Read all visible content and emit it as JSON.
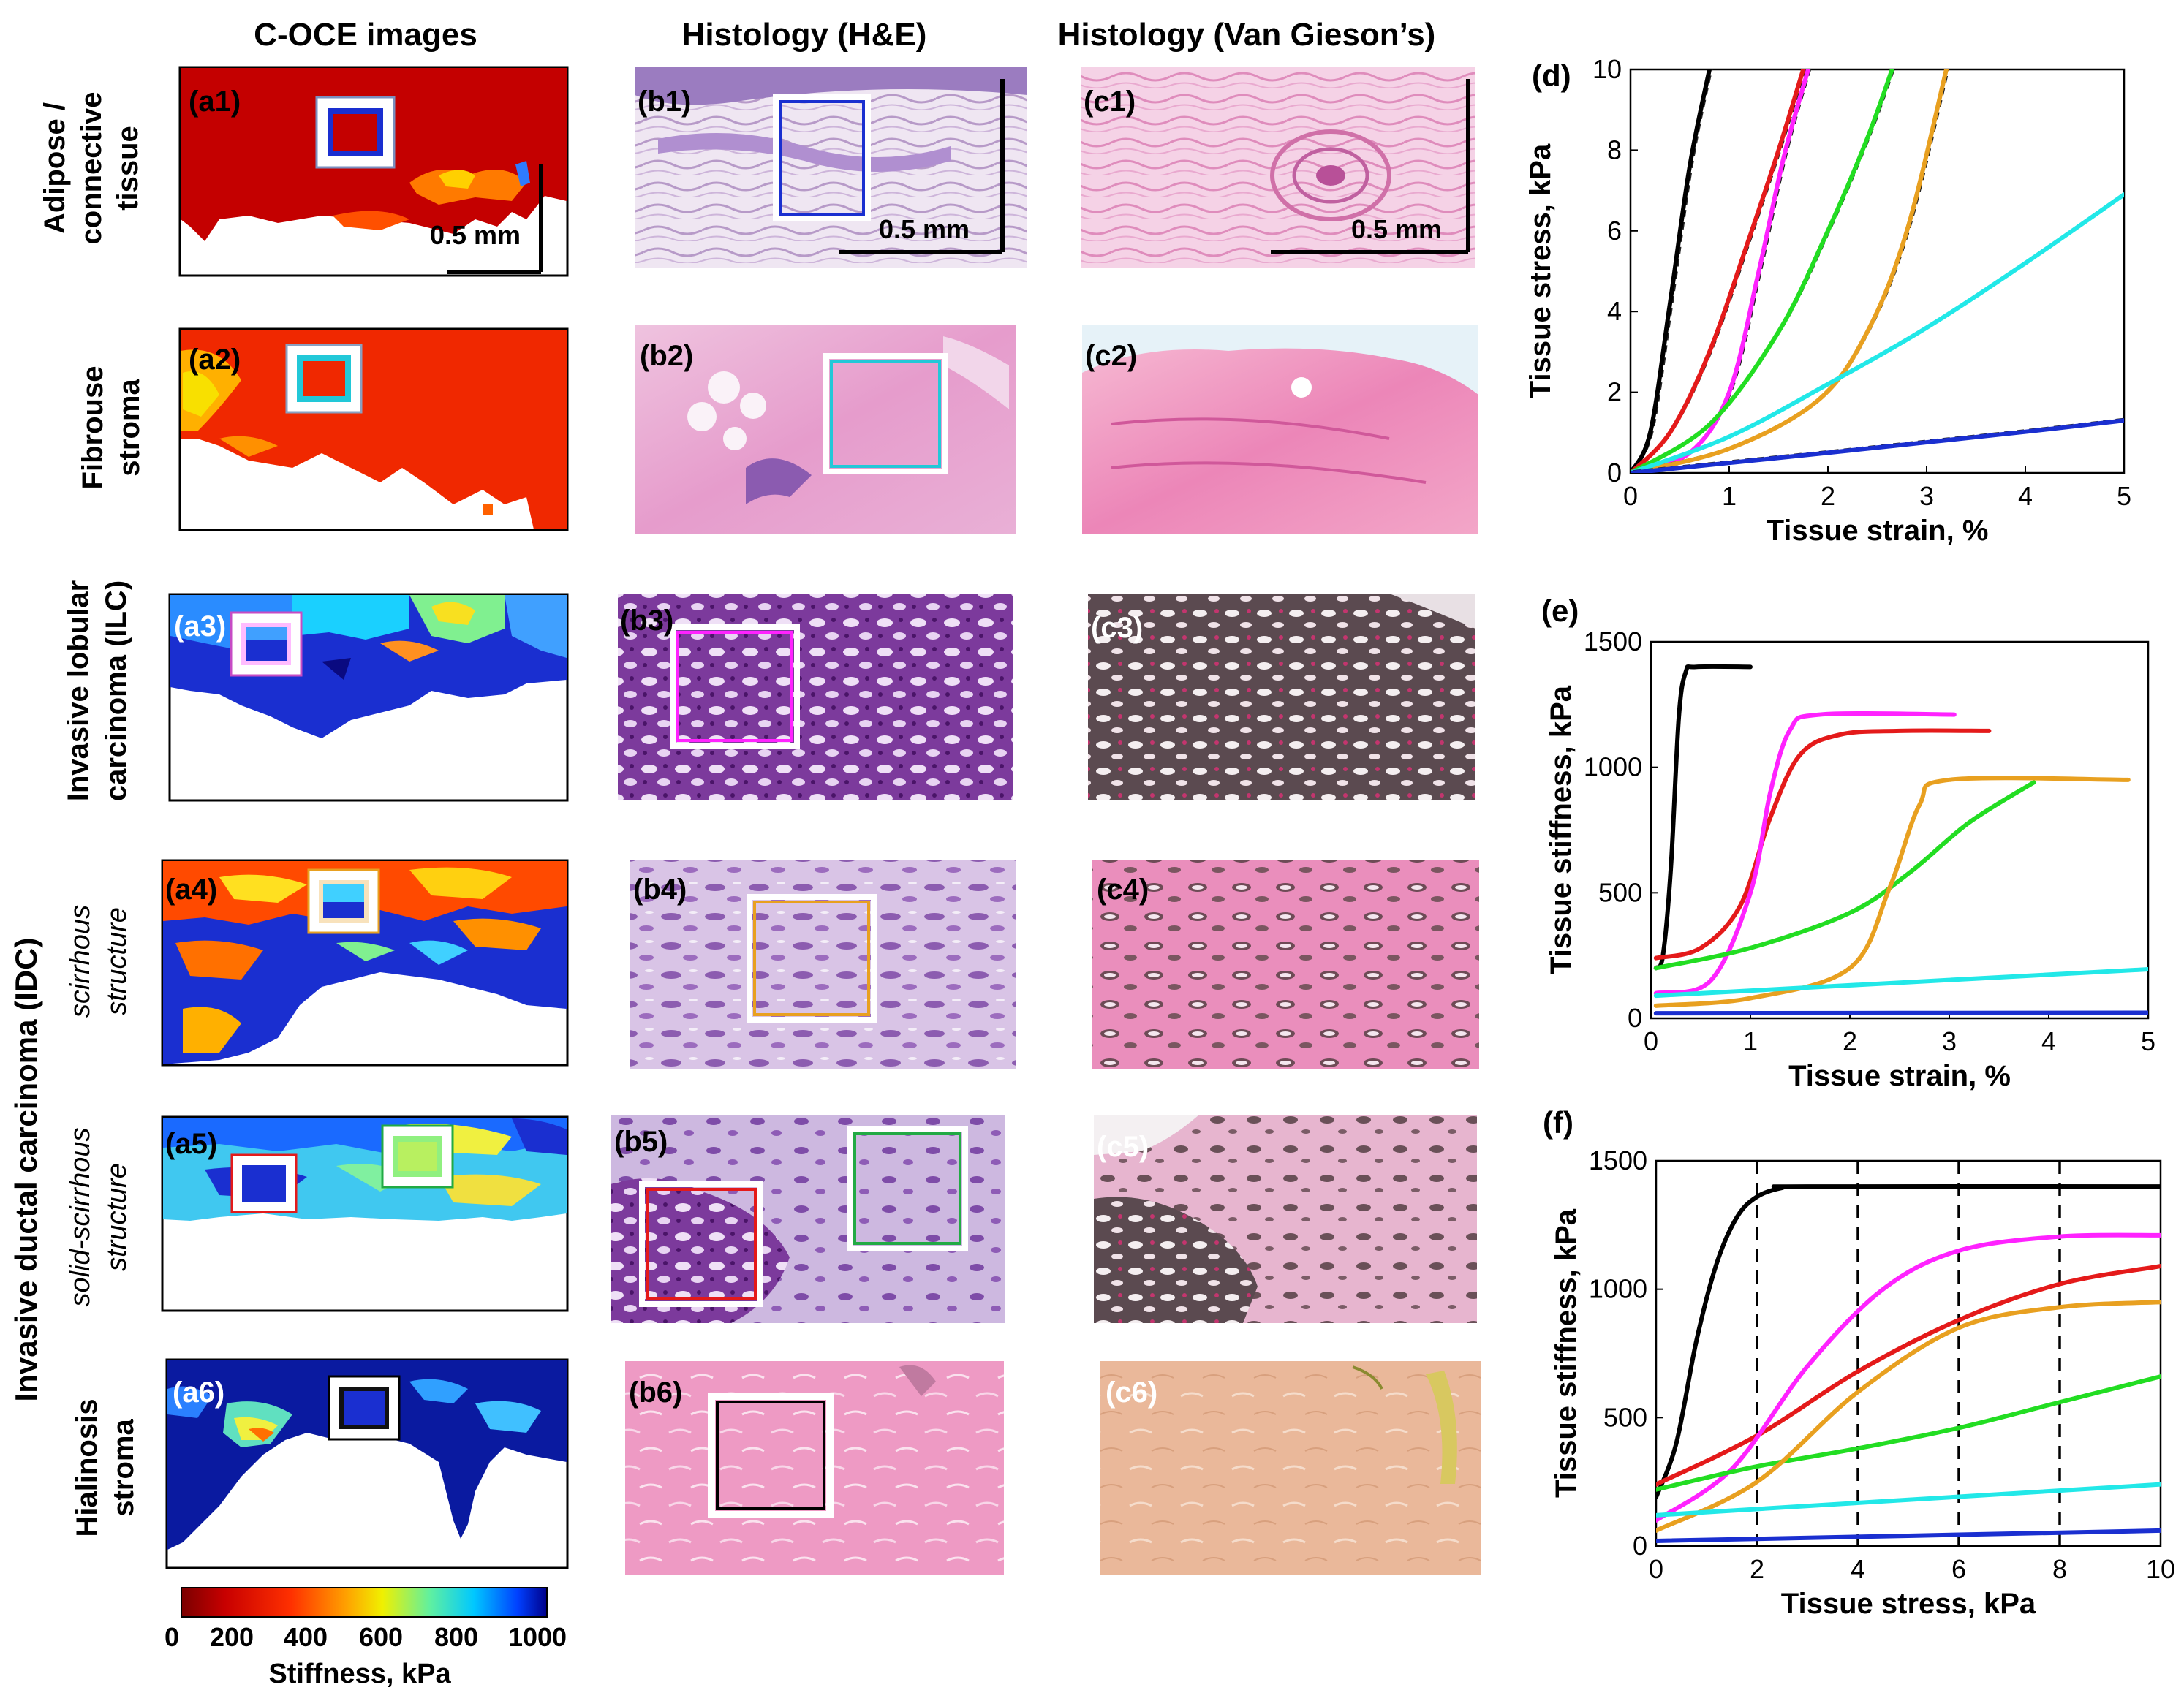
{
  "column_headers": {
    "oce": "C-OCE images",
    "he": "Histology (H&E)",
    "vg": "Histology (Van Gieson’s)"
  },
  "row_labels": {
    "r1": [
      "Adipose /",
      "connective",
      "tissue"
    ],
    "r2": [
      "Fibrouse",
      "stroma"
    ],
    "r3": [
      "Invasive lobular",
      "carcinoma (ILC)"
    ],
    "r4": [
      "scirrhous",
      "structure"
    ],
    "r5": [
      "solid-scirrhous",
      "structure"
    ],
    "r6": [
      "Hialinosis",
      "stroma"
    ],
    "idc": "Invasive ductal carcinoma (IDC)"
  },
  "panel_labels": {
    "a1": "(a1)",
    "a2": "(a2)",
    "a3": "(a3)",
    "a4": "(a4)",
    "a5": "(a5)",
    "a6": "(a6)",
    "b1": "(b1)",
    "b2": "(b2)",
    "b3": "(b3)",
    "b4": "(b4)",
    "b5": "(b5)",
    "b6": "(b6)",
    "c1": "(c1)",
    "c2": "(c2)",
    "c3": "(c3)",
    "c4": "(c4)",
    "c5": "(c5)",
    "c6": "(c6)",
    "d": "(d)",
    "e": "(e)",
    "f": "(f)"
  },
  "scale_bar": "0.5 mm",
  "colorbar": {
    "ticks": [
      "0",
      "200",
      "400",
      "600",
      "800",
      "1000"
    ],
    "label": "Stiffness, kPa"
  },
  "colors": {
    "black": "#000000",
    "red": "#e41a1a",
    "magenta": "#ff22ff",
    "green": "#22dd22",
    "orange": "#e8a020",
    "cyan": "#22e8e8",
    "blue": "#1a2fd0"
  },
  "chart_data": [
    {
      "id": "d",
      "type": "line",
      "xlabel": "Tissue strain, %",
      "ylabel": "Tissue stress, kPa",
      "xlim": [
        0,
        5
      ],
      "ylim": [
        0,
        10
      ],
      "xticks": [
        0,
        1,
        2,
        3,
        4,
        5
      ],
      "yticks": [
        0,
        2,
        4,
        6,
        8,
        10
      ],
      "series": [
        {
          "name": "black",
          "x": [
            0,
            0.2,
            0.4,
            0.6,
            0.8
          ],
          "y": [
            0,
            1.0,
            4.2,
            7.6,
            10
          ]
        },
        {
          "name": "red",
          "x": [
            0,
            0.4,
            0.8,
            1.2,
            1.5,
            1.75
          ],
          "y": [
            0,
            1.0,
            3.0,
            5.8,
            8.0,
            10
          ]
        },
        {
          "name": "magenta",
          "x": [
            0,
            0.6,
            1.0,
            1.3,
            1.55,
            1.8
          ],
          "y": [
            0,
            0.5,
            2.0,
            5.0,
            7.8,
            10
          ]
        },
        {
          "name": "green",
          "x": [
            0,
            0.8,
            1.5,
            2.0,
            2.4,
            2.65
          ],
          "y": [
            0,
            1.2,
            3.5,
            6.0,
            8.3,
            10
          ]
        },
        {
          "name": "orange",
          "x": [
            0,
            1.0,
            1.9,
            2.4,
            2.8,
            3.2
          ],
          "y": [
            0,
            0.6,
            1.8,
            3.5,
            6.0,
            10
          ]
        },
        {
          "name": "cyan",
          "x": [
            0,
            1.0,
            2.0,
            3.0,
            4.0,
            5.0
          ],
          "y": [
            0,
            0.9,
            2.2,
            3.6,
            5.2,
            6.9
          ]
        },
        {
          "name": "blue",
          "x": [
            0,
            1.0,
            2.0,
            3.0,
            4.0,
            5.0
          ],
          "y": [
            0,
            0.25,
            0.5,
            0.76,
            1.02,
            1.3
          ]
        }
      ]
    },
    {
      "id": "e",
      "type": "line",
      "xlabel": "Tissue strain, %",
      "ylabel": "Tissue stiffness, kPa",
      "xlim": [
        0,
        5
      ],
      "ylim": [
        0,
        1500
      ],
      "xticks": [
        0,
        1,
        2,
        3,
        4,
        5
      ],
      "yticks": [
        0,
        500,
        1000,
        1500
      ],
      "series": [
        {
          "name": "black",
          "x": [
            0.05,
            0.12,
            0.2,
            0.28,
            0.35,
            0.45,
            1.0
          ],
          "y": [
            200,
            250,
            600,
            1200,
            1380,
            1400,
            1400
          ]
        },
        {
          "name": "red",
          "x": [
            0.05,
            0.5,
            0.9,
            1.2,
            1.5,
            1.9,
            2.5,
            3.4
          ],
          "y": [
            240,
            280,
            450,
            800,
            1050,
            1130,
            1145,
            1145
          ]
        },
        {
          "name": "magenta",
          "x": [
            0.05,
            0.6,
            1.0,
            1.2,
            1.4,
            1.7,
            3.05
          ],
          "y": [
            100,
            150,
            500,
            900,
            1150,
            1210,
            1210
          ]
        },
        {
          "name": "green",
          "x": [
            0.05,
            1.0,
            2.0,
            2.6,
            3.2,
            3.85
          ],
          "y": [
            200,
            280,
            420,
            580,
            780,
            940
          ]
        },
        {
          "name": "orange",
          "x": [
            0.05,
            1.0,
            2.0,
            2.4,
            2.7,
            3.0,
            4.8
          ],
          "y": [
            50,
            80,
            200,
            520,
            850,
            950,
            950
          ]
        },
        {
          "name": "cyan",
          "x": [
            0.05,
            5.0
          ],
          "y": [
            90,
            195
          ]
        },
        {
          "name": "blue",
          "x": [
            0.05,
            5.0
          ],
          "y": [
            20,
            22
          ]
        }
      ]
    },
    {
      "id": "f",
      "type": "line",
      "xlabel": "Tissue stress, kPa",
      "ylabel": "Tissue stiffness, kPa",
      "xlim": [
        0,
        10
      ],
      "ylim": [
        0,
        1500
      ],
      "xticks": [
        0,
        2,
        4,
        6,
        8,
        10
      ],
      "yticks": [
        0,
        500,
        1000,
        1500
      ],
      "vlines": [
        2,
        4,
        6,
        8
      ],
      "series": [
        {
          "name": "black",
          "x": [
            0,
            0.4,
            0.8,
            1.2,
            1.6,
            2.0,
            2.5,
            3.0,
            10
          ],
          "y": [
            190,
            400,
            800,
            1100,
            1280,
            1360,
            1395,
            1400,
            1400
          ]
        },
        {
          "name": "red",
          "x": [
            0,
            2,
            4,
            6,
            8,
            10
          ],
          "y": [
            240,
            430,
            680,
            880,
            1020,
            1090
          ]
        },
        {
          "name": "magenta",
          "x": [
            0,
            1.5,
            3.0,
            4.5,
            6.0,
            8.0,
            10
          ],
          "y": [
            100,
            300,
            700,
            1000,
            1150,
            1205,
            1210
          ]
        },
        {
          "name": "green",
          "x": [
            0,
            2,
            4,
            6,
            8,
            10
          ],
          "y": [
            220,
            310,
            380,
            460,
            560,
            660
          ]
        },
        {
          "name": "orange",
          "x": [
            0,
            2,
            4,
            6,
            8,
            10
          ],
          "y": [
            60,
            250,
            600,
            850,
            930,
            950
          ]
        },
        {
          "name": "cyan",
          "x": [
            0,
            10
          ],
          "y": [
            120,
            240
          ]
        },
        {
          "name": "blue",
          "x": [
            0,
            10
          ],
          "y": [
            20,
            60
          ]
        }
      ]
    }
  ]
}
